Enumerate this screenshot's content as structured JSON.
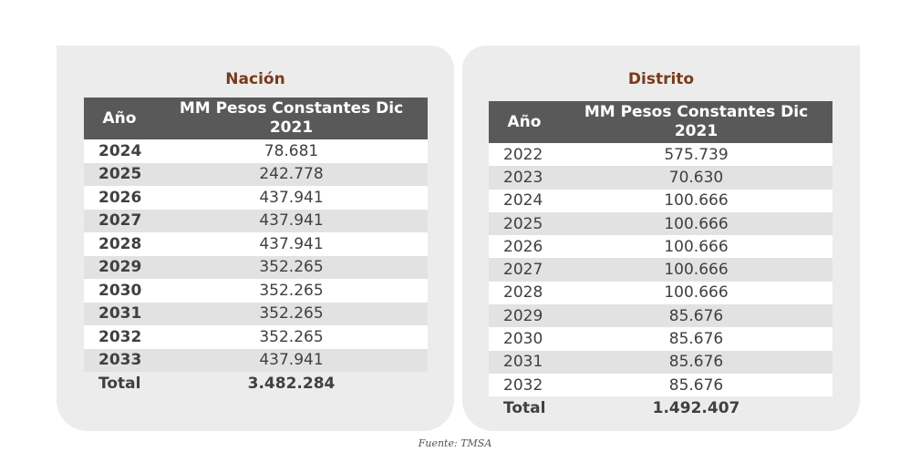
{
  "nacion": {
    "title": "Nación",
    "col_year": "Año",
    "col_value": "MM Pesos Constantes Dic 2021",
    "rows": [
      {
        "year": "2024",
        "value": "78.681"
      },
      {
        "year": "2025",
        "value": "242.778"
      },
      {
        "year": "2026",
        "value": "437.941"
      },
      {
        "year": "2027",
        "value": "437.941"
      },
      {
        "year": "2028",
        "value": "437.941"
      },
      {
        "year": "2029",
        "value": "352.265"
      },
      {
        "year": "2030",
        "value": "352.265"
      },
      {
        "year": "2031",
        "value": "352.265"
      },
      {
        "year": "2032",
        "value": "352.265"
      },
      {
        "year": "2033",
        "value": "437.941"
      }
    ],
    "total_label": "Total",
    "total_value": "3.482.284"
  },
  "distrito": {
    "title": "Distrito",
    "col_year": "Año",
    "col_value": "MM Pesos Constantes Dic 2021",
    "rows": [
      {
        "year": "2022",
        "value": "575.739"
      },
      {
        "year": "2023",
        "value": "70.630"
      },
      {
        "year": "2024",
        "value": "100.666"
      },
      {
        "year": "2025",
        "value": "100.666"
      },
      {
        "year": "2026",
        "value": "100.666"
      },
      {
        "year": "2027",
        "value": "100.666"
      },
      {
        "year": "2028",
        "value": "100.666"
      },
      {
        "year": "2029",
        "value": "85.676"
      },
      {
        "year": "2030",
        "value": "85.676"
      },
      {
        "year": "2031",
        "value": "85.676"
      },
      {
        "year": "2032",
        "value": "85.676"
      }
    ],
    "total_label": "Total",
    "total_value": "1.492.407"
  },
  "source": "Fuente: TMSA"
}
